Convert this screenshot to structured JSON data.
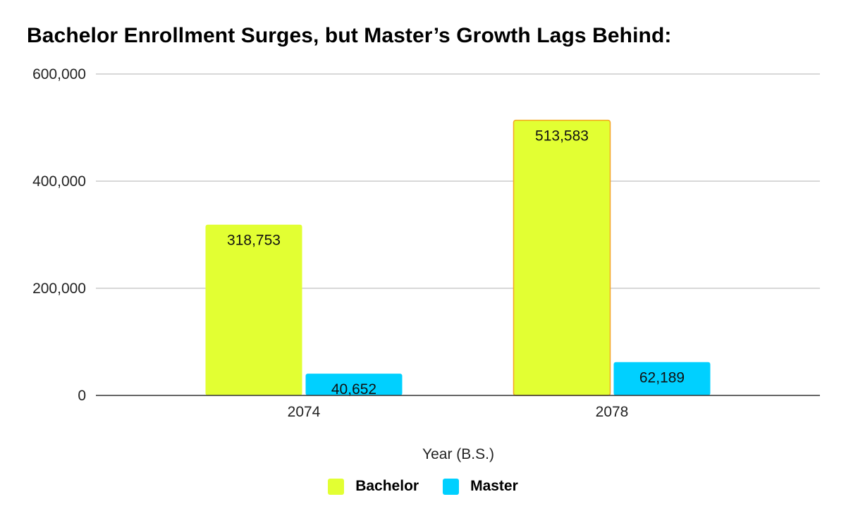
{
  "chart_data": {
    "type": "bar",
    "title": "Bachelor Enrollment Surges, but Master’s Growth Lags Behind:",
    "xlabel": "Year (B.S.)",
    "ylabel": "",
    "categories": [
      "2074",
      "2078"
    ],
    "series": [
      {
        "name": "Bachelor",
        "color": "#e2ff33",
        "values": [
          318753,
          513583
        ],
        "labels": [
          "318,753",
          "513,583"
        ]
      },
      {
        "name": "Master",
        "color": "#00d0ff",
        "values": [
          40652,
          62189
        ],
        "labels": [
          "40,652",
          "62,189"
        ]
      }
    ],
    "ylim": [
      0,
      600000
    ],
    "yticks": [
      0,
      200000,
      400000,
      600000
    ],
    "ytick_labels": [
      "0",
      "200,000",
      "400,000",
      "600,000"
    ],
    "grid": true,
    "legend": "bottom",
    "highlight_outline_color": "#f5a623"
  }
}
